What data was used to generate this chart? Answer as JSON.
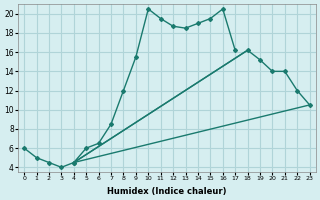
{
  "xlabel": "Humidex (Indice chaleur)",
  "ylabel": "",
  "background_color": "#d6eef0",
  "grid_color": "#b0d4d8",
  "line_color": "#1a7a6e",
  "xlim": [
    -0.5,
    23.5
  ],
  "ylim": [
    3.5,
    21
  ],
  "xticks": [
    0,
    1,
    2,
    3,
    4,
    5,
    6,
    7,
    8,
    9,
    10,
    11,
    12,
    13,
    14,
    15,
    16,
    17,
    18,
    19,
    20,
    21,
    22,
    23
  ],
  "yticks": [
    4,
    6,
    8,
    10,
    12,
    14,
    16,
    18,
    20
  ],
  "line1_x": [
    0,
    1,
    2,
    3,
    4,
    5,
    6,
    7,
    8,
    9,
    10,
    11,
    12,
    13,
    14,
    15,
    16,
    17,
    18,
    19,
    20,
    21,
    22,
    23
  ],
  "line1_y": [
    6.0,
    5.0,
    4.5,
    4.0,
    4.5,
    6.0,
    6.5,
    8.5,
    12.0,
    15.5,
    20.5,
    19.5,
    18.7,
    18.5,
    19.0,
    19.5,
    20.5,
    16.2,
    null,
    null,
    null,
    null,
    null,
    null
  ],
  "line2_x": [
    0,
    1,
    2,
    3,
    4,
    5,
    6,
    7,
    8,
    9,
    10,
    11,
    12,
    13,
    14,
    15,
    16,
    17,
    18,
    19,
    20,
    21,
    22,
    23
  ],
  "line2_y": [
    null,
    null,
    null,
    null,
    4.5,
    null,
    null,
    null,
    null,
    null,
    null,
    null,
    null,
    null,
    null,
    null,
    null,
    null,
    16.2,
    15.2,
    14.0,
    14.0,
    12.0,
    10.5
  ],
  "line3_x": [
    4,
    23
  ],
  "line3_y": [
    4.5,
    10.5
  ],
  "line4_x": [
    4,
    18
  ],
  "line4_y": [
    4.5,
    16.2
  ]
}
